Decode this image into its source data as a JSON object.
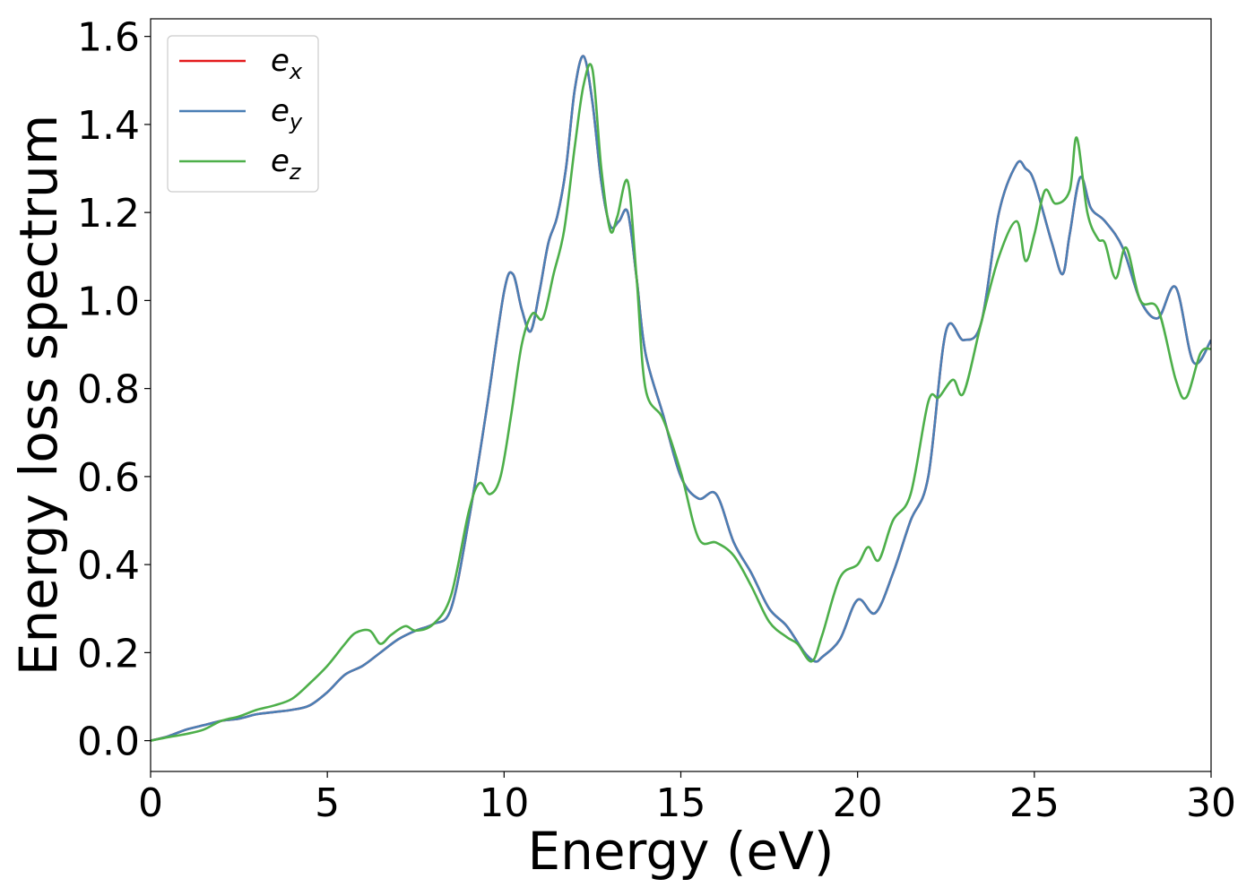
{
  "chart_data": {
    "type": "line",
    "title": "",
    "xlabel": "Energy (eV)",
    "ylabel": "Energy loss spectrum",
    "xlim": [
      0,
      30
    ],
    "ylim": [
      -0.07,
      1.64
    ],
    "xticks": [
      0,
      5,
      10,
      15,
      20,
      25,
      30
    ],
    "xtick_labels": [
      "0",
      "5",
      "10",
      "15",
      "20",
      "25",
      "30"
    ],
    "yticks": [
      0.0,
      0.2,
      0.4,
      0.6,
      0.8,
      1.0,
      1.2,
      1.4,
      1.6
    ],
    "ytick_labels": [
      "0.0",
      "0.2",
      "0.4",
      "0.6",
      "0.8",
      "1.0",
      "1.2",
      "1.4",
      "1.6"
    ],
    "grid": false,
    "legend_position": "top-left",
    "colors": {
      "ex": "#e41a1c",
      "ey": "#4a7fb5",
      "ez": "#4daf4a"
    },
    "series": [
      {
        "name": "e_x",
        "legend_base": "e",
        "legend_sub": "x",
        "color_key": "ex",
        "x": [
          0,
          0.5,
          1,
          1.5,
          2,
          2.5,
          3,
          3.5,
          4,
          4.5,
          5,
          5.5,
          6,
          6.5,
          7,
          7.5,
          8,
          8.5,
          9,
          9.5,
          10,
          10.25,
          10.5,
          10.75,
          11,
          11.25,
          11.5,
          11.75,
          12,
          12.25,
          12.5,
          12.75,
          13,
          13.25,
          13.5,
          13.75,
          14,
          14.5,
          15,
          15.5,
          16,
          16.5,
          17,
          17.5,
          18,
          18.5,
          18.8,
          19,
          19.5,
          20,
          20.5,
          21,
          21.5,
          22,
          22.5,
          23,
          23.5,
          24,
          24.5,
          24.75,
          25,
          25.5,
          25.8,
          26,
          26.3,
          26.6,
          27,
          27.5,
          28,
          28.5,
          29,
          29.5,
          30
        ],
        "y": [
          0.0,
          0.01,
          0.025,
          0.035,
          0.045,
          0.05,
          0.06,
          0.065,
          0.07,
          0.08,
          0.11,
          0.15,
          0.17,
          0.2,
          0.23,
          0.25,
          0.265,
          0.3,
          0.5,
          0.75,
          1.02,
          1.06,
          0.98,
          0.93,
          1.02,
          1.13,
          1.19,
          1.3,
          1.48,
          1.555,
          1.45,
          1.27,
          1.17,
          1.18,
          1.2,
          1.05,
          0.88,
          0.74,
          0.6,
          0.55,
          0.56,
          0.45,
          0.38,
          0.3,
          0.26,
          0.2,
          0.18,
          0.19,
          0.23,
          0.32,
          0.29,
          0.38,
          0.5,
          0.6,
          0.93,
          0.91,
          0.95,
          1.2,
          1.31,
          1.3,
          1.27,
          1.13,
          1.06,
          1.15,
          1.28,
          1.21,
          1.18,
          1.12,
          1.0,
          0.96,
          1.03,
          0.86,
          0.91
        ]
      },
      {
        "name": "e_y",
        "legend_base": "e",
        "legend_sub": "y",
        "color_key": "ey",
        "x": [
          0,
          0.5,
          1,
          1.5,
          2,
          2.5,
          3,
          3.5,
          4,
          4.5,
          5,
          5.5,
          6,
          6.5,
          7,
          7.5,
          8,
          8.5,
          9,
          9.5,
          10,
          10.25,
          10.5,
          10.75,
          11,
          11.25,
          11.5,
          11.75,
          12,
          12.25,
          12.5,
          12.75,
          13,
          13.25,
          13.5,
          13.75,
          14,
          14.5,
          15,
          15.5,
          16,
          16.5,
          17,
          17.5,
          18,
          18.5,
          18.8,
          19,
          19.5,
          20,
          20.5,
          21,
          21.5,
          22,
          22.5,
          23,
          23.5,
          24,
          24.5,
          24.75,
          25,
          25.5,
          25.8,
          26,
          26.3,
          26.6,
          27,
          27.5,
          28,
          28.5,
          29,
          29.5,
          30
        ],
        "y": [
          0.0,
          0.01,
          0.025,
          0.035,
          0.045,
          0.05,
          0.06,
          0.065,
          0.07,
          0.08,
          0.11,
          0.15,
          0.17,
          0.2,
          0.23,
          0.25,
          0.265,
          0.3,
          0.5,
          0.75,
          1.02,
          1.06,
          0.98,
          0.93,
          1.02,
          1.13,
          1.19,
          1.3,
          1.48,
          1.555,
          1.45,
          1.27,
          1.17,
          1.18,
          1.2,
          1.05,
          0.88,
          0.74,
          0.6,
          0.55,
          0.56,
          0.45,
          0.38,
          0.3,
          0.26,
          0.2,
          0.18,
          0.19,
          0.23,
          0.32,
          0.29,
          0.38,
          0.5,
          0.6,
          0.93,
          0.91,
          0.95,
          1.2,
          1.31,
          1.3,
          1.27,
          1.13,
          1.06,
          1.15,
          1.28,
          1.21,
          1.18,
          1.12,
          1.0,
          0.96,
          1.03,
          0.86,
          0.91
        ]
      },
      {
        "name": "e_z",
        "legend_base": "e",
        "legend_sub": "z",
        "color_key": "ez",
        "x": [
          0,
          0.5,
          1,
          1.5,
          2,
          2.5,
          3,
          3.5,
          4,
          4.5,
          5,
          5.5,
          5.8,
          6.2,
          6.5,
          6.8,
          7.2,
          7.5,
          8,
          8.5,
          9,
          9.3,
          9.6,
          9.9,
          10.2,
          10.5,
          10.8,
          11.1,
          11.4,
          11.7,
          12,
          12.25,
          12.5,
          12.75,
          13,
          13.2,
          13.5,
          13.75,
          14,
          14.5,
          15,
          15.5,
          16,
          16.5,
          17,
          17.5,
          18,
          18.3,
          18.7,
          19,
          19.5,
          20,
          20.3,
          20.6,
          21,
          21.5,
          22,
          22.3,
          22.7,
          23,
          23.5,
          24,
          24.5,
          24.75,
          25,
          25.3,
          25.6,
          26,
          26.2,
          26.5,
          26.8,
          27,
          27.3,
          27.6,
          28,
          28.5,
          29,
          29.3,
          29.7,
          30
        ],
        "y": [
          0.0,
          0.008,
          0.015,
          0.025,
          0.045,
          0.055,
          0.07,
          0.08,
          0.095,
          0.13,
          0.17,
          0.22,
          0.245,
          0.25,
          0.22,
          0.24,
          0.26,
          0.25,
          0.265,
          0.33,
          0.52,
          0.585,
          0.56,
          0.6,
          0.74,
          0.9,
          0.97,
          0.96,
          1.06,
          1.16,
          1.35,
          1.49,
          1.525,
          1.3,
          1.16,
          1.19,
          1.27,
          1.05,
          0.8,
          0.73,
          0.61,
          0.46,
          0.45,
          0.42,
          0.35,
          0.27,
          0.235,
          0.22,
          0.18,
          0.24,
          0.37,
          0.4,
          0.44,
          0.41,
          0.5,
          0.56,
          0.77,
          0.78,
          0.82,
          0.79,
          0.95,
          1.1,
          1.18,
          1.09,
          1.15,
          1.25,
          1.22,
          1.25,
          1.37,
          1.2,
          1.14,
          1.13,
          1.05,
          1.12,
          1.0,
          0.98,
          0.82,
          0.78,
          0.88,
          0.89
        ]
      }
    ]
  }
}
